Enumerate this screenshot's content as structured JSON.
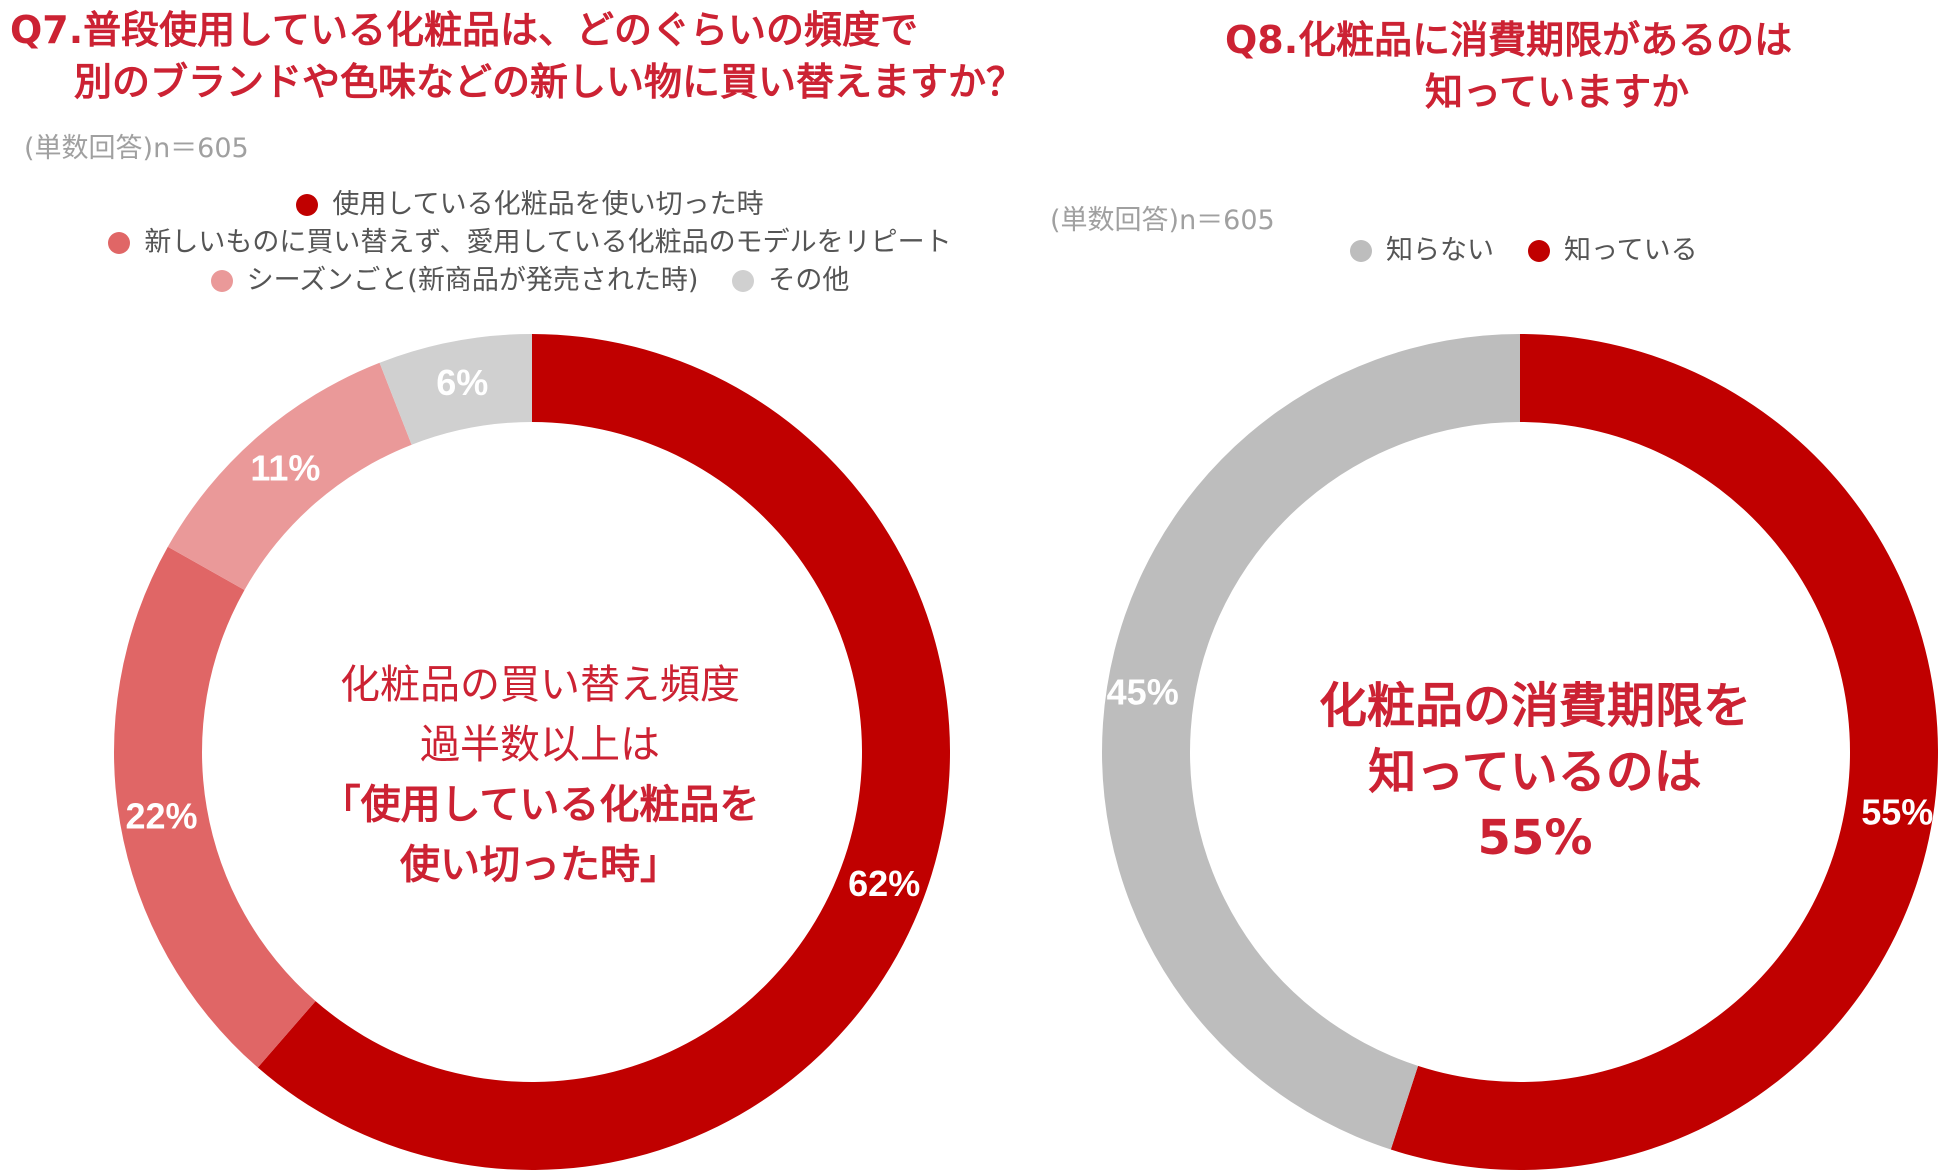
{
  "q7": {
    "title_line1": "Q7.普段使用している化粧品は、どのぐらいの頻度で",
    "title_line2": "別のブランドや色味などの新しい物に買い替えますか？",
    "sample_note": "(単数回答)n＝605",
    "center_line1": "化粧品の買い替え頻度",
    "center_line2": "過半数以上は",
    "center_line3": "「使用している化粧品を",
    "center_line4": "使い切った時」"
  },
  "q8": {
    "title_line1": "Q8.化粧品に消費期限があるのは",
    "title_line2": "知っていますか",
    "sample_note": "(単数回答)n＝605",
    "center_line1": "化粧品の消費期限を",
    "center_line2": "知っているのは",
    "center_line3": "55%"
  },
  "chart_data": [
    {
      "type": "pie",
      "donut": true,
      "legend": "top",
      "categories": [
        "使用している化粧品を使い切った時",
        "新しいものに買い替えず、愛用している化粧品のモデルをリピート",
        "シーズンごと(新商品が発売された時)",
        "その他"
      ],
      "values": [
        62,
        22,
        11,
        6
      ],
      "labels": [
        "62%",
        "22%",
        "11%",
        "6%"
      ],
      "colors": [
        "#c00000",
        "#e06666",
        "#ea9999",
        "#d0d0d0"
      ]
    },
    {
      "type": "pie",
      "donut": true,
      "legend": "top",
      "categories": [
        "知っている",
        "知らない"
      ],
      "legend_order": [
        "知らない",
        "知っている"
      ],
      "values": [
        55,
        45
      ],
      "labels": [
        "55%",
        "45%"
      ],
      "colors": [
        "#c00000",
        "#bdbdbd"
      ]
    }
  ]
}
